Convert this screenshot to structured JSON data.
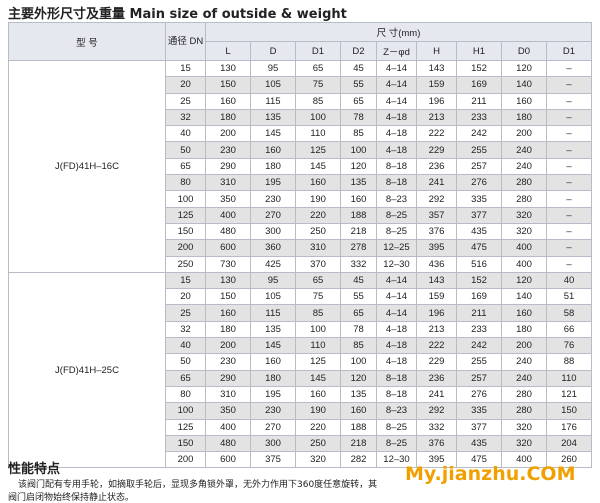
{
  "header": {
    "title": "主要外形尺寸及重量 Main size of outside & weight"
  },
  "table": {
    "model_header": "型 号",
    "dn_header": "通径 DN",
    "size_header": "尺 寸(mm)",
    "columns": [
      "L",
      "D",
      "D1",
      "D2",
      "Z－φd",
      "H",
      "H1",
      "D0",
      "D1"
    ],
    "groups": [
      {
        "model": "J(FD)41H–16C",
        "rows": [
          [
            "15",
            "130",
            "95",
            "65",
            "45",
            "4–14",
            "143",
            "152",
            "120",
            "–"
          ],
          [
            "20",
            "150",
            "105",
            "75",
            "55",
            "4–14",
            "159",
            "169",
            "140",
            "–"
          ],
          [
            "25",
            "160",
            "115",
            "85",
            "65",
            "4–14",
            "196",
            "211",
            "160",
            "–"
          ],
          [
            "32",
            "180",
            "135",
            "100",
            "78",
            "4–18",
            "213",
            "233",
            "180",
            "–"
          ],
          [
            "40",
            "200",
            "145",
            "110",
            "85",
            "4–18",
            "222",
            "242",
            "200",
            "–"
          ],
          [
            "50",
            "230",
            "160",
            "125",
            "100",
            "4–18",
            "229",
            "255",
            "240",
            "–"
          ],
          [
            "65",
            "290",
            "180",
            "145",
            "120",
            "8–18",
            "236",
            "257",
            "240",
            "–"
          ],
          [
            "80",
            "310",
            "195",
            "160",
            "135",
            "8–18",
            "241",
            "276",
            "280",
            "–"
          ],
          [
            "100",
            "350",
            "230",
            "190",
            "160",
            "8–23",
            "292",
            "335",
            "280",
            "–"
          ],
          [
            "125",
            "400",
            "270",
            "220",
            "188",
            "8–25",
            "357",
            "377",
            "320",
            "–"
          ],
          [
            "150",
            "480",
            "300",
            "250",
            "218",
            "8–25",
            "376",
            "435",
            "320",
            "–"
          ],
          [
            "200",
            "600",
            "360",
            "310",
            "278",
            "12–25",
            "395",
            "475",
            "400",
            "–"
          ],
          [
            "250",
            "730",
            "425",
            "370",
            "332",
            "12–30",
            "436",
            "516",
            "400",
            "–"
          ]
        ]
      },
      {
        "model": "J(FD)41H–25C",
        "rows": [
          [
            "15",
            "130",
            "95",
            "65",
            "45",
            "4–14",
            "143",
            "152",
            "120",
            "40"
          ],
          [
            "20",
            "150",
            "105",
            "75",
            "55",
            "4–14",
            "159",
            "169",
            "140",
            "51"
          ],
          [
            "25",
            "160",
            "115",
            "85",
            "65",
            "4–14",
            "196",
            "211",
            "160",
            "58"
          ],
          [
            "32",
            "180",
            "135",
            "100",
            "78",
            "4–18",
            "213",
            "233",
            "180",
            "66"
          ],
          [
            "40",
            "200",
            "145",
            "110",
            "85",
            "4–18",
            "222",
            "242",
            "200",
            "76"
          ],
          [
            "50",
            "230",
            "160",
            "125",
            "100",
            "4–18",
            "229",
            "255",
            "240",
            "88"
          ],
          [
            "65",
            "290",
            "180",
            "145",
            "120",
            "8–18",
            "236",
            "257",
            "240",
            "110"
          ],
          [
            "80",
            "310",
            "195",
            "160",
            "135",
            "8–18",
            "241",
            "276",
            "280",
            "121"
          ],
          [
            "100",
            "350",
            "230",
            "190",
            "160",
            "8–23",
            "292",
            "335",
            "280",
            "150"
          ],
          [
            "125",
            "400",
            "270",
            "220",
            "188",
            "8–25",
            "332",
            "377",
            "320",
            "176"
          ],
          [
            "150",
            "480",
            "300",
            "250",
            "218",
            "8–25",
            "376",
            "435",
            "320",
            "204"
          ],
          [
            "200",
            "600",
            "375",
            "320",
            "282",
            "12–30",
            "395",
            "475",
            "400",
            "260"
          ]
        ]
      }
    ]
  },
  "section": {
    "title": "性能特点",
    "lines": [
      "该阀门配有专用手轮，如摘取手轮后，显现多角锁外罩，无外力作用下360度任意旋转，其",
      "阀门启闭物始终保持静止状态。"
    ]
  },
  "watermark": "My.jianzhu.COM"
}
